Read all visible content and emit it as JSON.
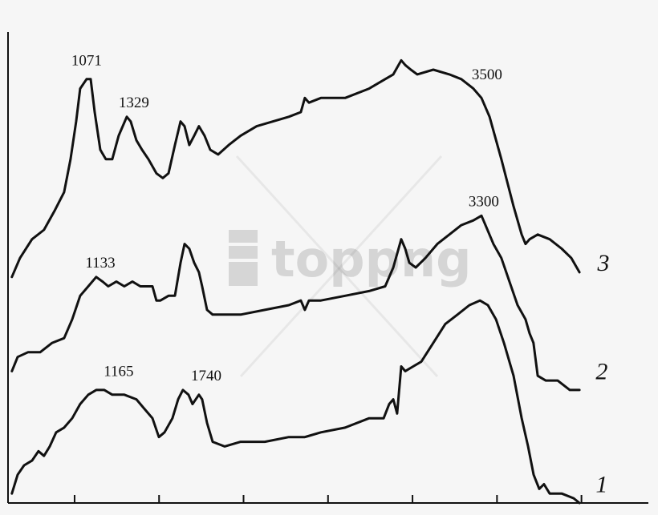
{
  "chart_data": {
    "type": "line",
    "title": "",
    "xlabel": "",
    "ylabel": "",
    "xlim": [
      606,
      4396
    ],
    "ylim": [
      0,
      100
    ],
    "xticks": [
      1000,
      1500,
      2000,
      2500,
      3000,
      3500,
      4000
    ],
    "tick_labels_shown": false,
    "grid": false,
    "line_color": "#111111",
    "series": [
      {
        "name": "1",
        "points": [
          [
            629,
            2
          ],
          [
            663,
            6
          ],
          [
            701,
            8
          ],
          [
            748,
            9
          ],
          [
            786,
            11
          ],
          [
            819,
            10
          ],
          [
            853,
            12
          ],
          [
            891,
            15
          ],
          [
            938,
            16
          ],
          [
            986,
            18
          ],
          [
            1033,
            21
          ],
          [
            1081,
            23
          ],
          [
            1128,
            24
          ],
          [
            1176,
            24
          ],
          [
            1223,
            23
          ],
          [
            1294,
            23
          ],
          [
            1366,
            22
          ],
          [
            1413,
            20
          ],
          [
            1461,
            18
          ],
          [
            1499,
            14
          ],
          [
            1532,
            15
          ],
          [
            1579,
            18
          ],
          [
            1613,
            22
          ],
          [
            1641,
            24
          ],
          [
            1674,
            23
          ],
          [
            1698,
            21
          ],
          [
            1736,
            23
          ],
          [
            1755,
            22
          ],
          [
            1784,
            17
          ],
          [
            1817,
            13
          ],
          [
            1888,
            12
          ],
          [
            1983,
            13
          ],
          [
            2126,
            13
          ],
          [
            2268,
            14
          ],
          [
            2316,
            14
          ],
          [
            2363,
            14
          ],
          [
            2458,
            15
          ],
          [
            2601,
            16
          ],
          [
            2743,
            18
          ],
          [
            2829,
            18
          ],
          [
            2862,
            21
          ],
          [
            2886,
            22
          ],
          [
            2909,
            19
          ],
          [
            2933,
            29
          ],
          [
            2957,
            28
          ],
          [
            3004,
            29
          ],
          [
            3052,
            30
          ],
          [
            3123,
            34
          ],
          [
            3194,
            38
          ],
          [
            3266,
            40
          ],
          [
            3337,
            42
          ],
          [
            3399,
            43
          ],
          [
            3446,
            42
          ],
          [
            3494,
            39
          ],
          [
            3541,
            34
          ],
          [
            3598,
            27
          ],
          [
            3646,
            18
          ],
          [
            3684,
            12
          ],
          [
            3717,
            6
          ],
          [
            3750,
            3
          ],
          [
            3778,
            4
          ],
          [
            3812,
            2
          ],
          [
            3883,
            2
          ],
          [
            3954,
            1
          ],
          [
            3988,
            0
          ]
        ]
      },
      {
        "name": "2",
        "points": [
          [
            629,
            28
          ],
          [
            663,
            31
          ],
          [
            724,
            32
          ],
          [
            796,
            32
          ],
          [
            867,
            34
          ],
          [
            938,
            35
          ],
          [
            986,
            39
          ],
          [
            1033,
            44
          ],
          [
            1081,
            46
          ],
          [
            1128,
            48
          ],
          [
            1166,
            47
          ],
          [
            1199,
            46
          ],
          [
            1247,
            47
          ],
          [
            1294,
            46
          ],
          [
            1342,
            47
          ],
          [
            1389,
            46
          ],
          [
            1437,
            46
          ],
          [
            1461,
            46
          ],
          [
            1484,
            43
          ],
          [
            1508,
            43
          ],
          [
            1556,
            44
          ],
          [
            1594,
            44
          ],
          [
            1627,
            51
          ],
          [
            1651,
            55
          ],
          [
            1679,
            54
          ],
          [
            1708,
            51
          ],
          [
            1736,
            49
          ],
          [
            1755,
            46
          ],
          [
            1784,
            41
          ],
          [
            1817,
            40
          ],
          [
            1888,
            40
          ],
          [
            1983,
            40
          ],
          [
            2126,
            41
          ],
          [
            2268,
            42
          ],
          [
            2339,
            43
          ],
          [
            2363,
            41
          ],
          [
            2387,
            43
          ],
          [
            2458,
            43
          ],
          [
            2601,
            44
          ],
          [
            2743,
            45
          ],
          [
            2838,
            46
          ],
          [
            2886,
            50
          ],
          [
            2933,
            56
          ],
          [
            2957,
            54
          ],
          [
            2981,
            51
          ],
          [
            3019,
            50
          ],
          [
            3076,
            52
          ],
          [
            3147,
            55
          ],
          [
            3218,
            57
          ],
          [
            3289,
            59
          ],
          [
            3360,
            60
          ],
          [
            3408,
            61
          ],
          [
            3432,
            59
          ],
          [
            3479,
            55
          ],
          [
            3526,
            52
          ],
          [
            3574,
            47
          ],
          [
            3622,
            42
          ],
          [
            3669,
            39
          ],
          [
            3693,
            36
          ],
          [
            3716,
            34
          ],
          [
            3741,
            27
          ],
          [
            3788,
            26
          ],
          [
            3859,
            26
          ],
          [
            3931,
            24
          ],
          [
            3988,
            24
          ]
        ]
      },
      {
        "name": "3",
        "points": [
          [
            629,
            48
          ],
          [
            677,
            52
          ],
          [
            748,
            56
          ],
          [
            819,
            58
          ],
          [
            881,
            62
          ],
          [
            938,
            66
          ],
          [
            976,
            73
          ],
          [
            1009,
            81
          ],
          [
            1033,
            88
          ],
          [
            1071,
            90
          ],
          [
            1095,
            90
          ],
          [
            1119,
            83
          ],
          [
            1152,
            75
          ],
          [
            1185,
            73
          ],
          [
            1223,
            73
          ],
          [
            1261,
            78
          ],
          [
            1309,
            82
          ],
          [
            1332,
            81
          ],
          [
            1366,
            77
          ],
          [
            1399,
            75
          ],
          [
            1437,
            73
          ],
          [
            1484,
            70
          ],
          [
            1522,
            69
          ],
          [
            1556,
            70
          ],
          [
            1594,
            76
          ],
          [
            1627,
            81
          ],
          [
            1651,
            80
          ],
          [
            1679,
            76
          ],
          [
            1708,
            78
          ],
          [
            1736,
            80
          ],
          [
            1769,
            78
          ],
          [
            1803,
            75
          ],
          [
            1850,
            74
          ],
          [
            1912,
            76
          ],
          [
            1983,
            78
          ],
          [
            2078,
            80
          ],
          [
            2173,
            81
          ],
          [
            2268,
            82
          ],
          [
            2339,
            83
          ],
          [
            2363,
            86
          ],
          [
            2387,
            85
          ],
          [
            2458,
            86
          ],
          [
            2601,
            86
          ],
          [
            2743,
            88
          ],
          [
            2838,
            90
          ],
          [
            2886,
            91
          ],
          [
            2933,
            94
          ],
          [
            2957,
            93
          ],
          [
            2990,
            92
          ],
          [
            3028,
            91
          ],
          [
            3123,
            92
          ],
          [
            3218,
            91
          ],
          [
            3289,
            90
          ],
          [
            3360,
            88
          ],
          [
            3408,
            86
          ],
          [
            3456,
            82
          ],
          [
            3526,
            73
          ],
          [
            3598,
            63
          ],
          [
            3646,
            57
          ],
          [
            3669,
            55
          ],
          [
            3693,
            56
          ],
          [
            3741,
            57
          ],
          [
            3812,
            56
          ],
          [
            3883,
            54
          ],
          [
            3940,
            52
          ],
          [
            3988,
            49
          ]
        ]
      }
    ],
    "annotations": [
      {
        "text": "1071",
        "x": 1071,
        "y": 94
      },
      {
        "text": "1329",
        "x": 1351,
        "y": 85
      },
      {
        "text": "1133",
        "x": 1152,
        "y": 51
      },
      {
        "text": "1165",
        "x": 1261,
        "y": 28
      },
      {
        "text": "1740",
        "x": 1779,
        "y": 27
      },
      {
        "text": "3500",
        "x": 3441,
        "y": 91
      },
      {
        "text": "3300",
        "x": 3422,
        "y": 64
      }
    ],
    "curve_labels": [
      {
        "text": "3",
        "x": 4130,
        "y": 51
      },
      {
        "text": "2",
        "x": 4120,
        "y": 28
      },
      {
        "text": "1",
        "x": 4120,
        "y": 4
      }
    ]
  },
  "watermark": {
    "text": "toppng"
  }
}
